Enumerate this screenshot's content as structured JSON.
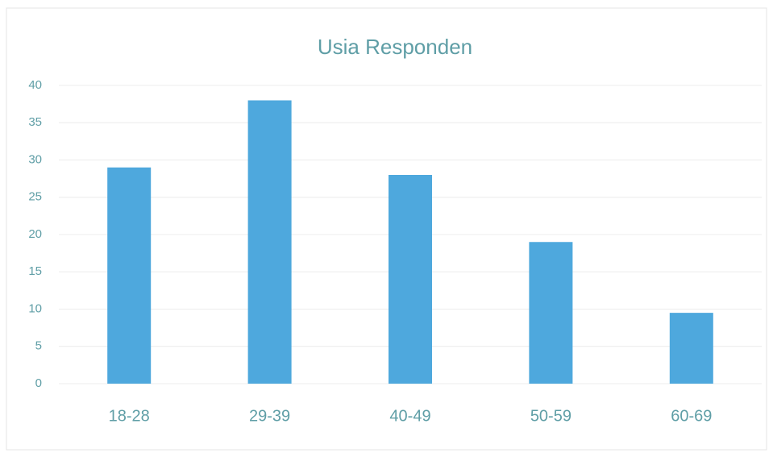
{
  "chart_data": {
    "type": "bar",
    "title": "Usia Responden",
    "categories": [
      "18-28",
      "29-39",
      "40-49",
      "50-59",
      "60-69"
    ],
    "values": [
      29,
      38,
      28,
      19,
      9.5
    ],
    "color": "#4ea8dd",
    "ylim": [
      0,
      40
    ],
    "yticks": [
      0,
      5,
      10,
      15,
      20,
      25,
      30,
      35,
      40
    ],
    "grid": true
  }
}
